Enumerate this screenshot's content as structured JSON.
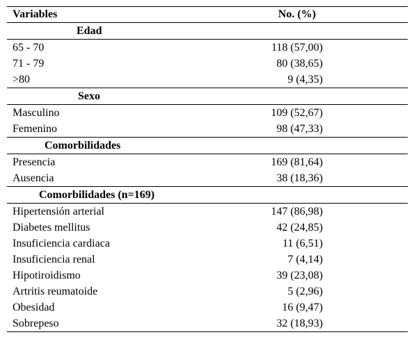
{
  "header": {
    "variables": "Variables",
    "count": "No. (%)"
  },
  "sections": [
    {
      "title": "Edad",
      "rows": [
        {
          "label": "65 - 70",
          "value": "118 (57,00)"
        },
        {
          "label": "71 - 79",
          "value": "80 (38,65)"
        },
        {
          "label": ">80",
          "value": "9 (4,35)"
        }
      ]
    },
    {
      "title": "Sexo",
      "rows": [
        {
          "label": "Masculino",
          "value": "109 (52,67)"
        },
        {
          "label": "Femenino",
          "value": "98 (47,33)"
        }
      ]
    },
    {
      "title": "Comorbilidades",
      "rows": [
        {
          "label": "Presencia",
          "value": "169 (81,64)"
        },
        {
          "label": "Ausencia",
          "value": "38 (18,36)"
        }
      ]
    },
    {
      "title": "Comorbilidades (n=169)",
      "rows": [
        {
          "label": "Hipertensión arterial",
          "value": "147 (86,98)"
        },
        {
          "label": "Diabetes mellitus",
          "value": "42 (24,85)"
        },
        {
          "label": "Insuficiencia cardiaca",
          "value": "11 (6,51)"
        },
        {
          "label": "Insuficiencia renal",
          "value": "7 (4,14)"
        },
        {
          "label": "Hipotiroidismo",
          "value": "39 (23,08)"
        },
        {
          "label": "Artritis reumatoide",
          "value": "5 (2,96)"
        },
        {
          "label": "Obesidad",
          "value": "16 (9,47)"
        },
        {
          "label": "Sobrepeso",
          "value": "32 (18,93)"
        }
      ]
    }
  ]
}
